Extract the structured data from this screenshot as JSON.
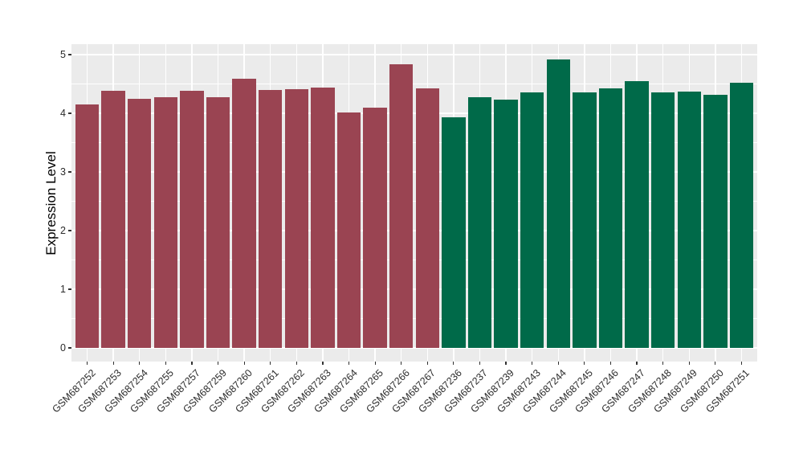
{
  "chart_data": {
    "type": "bar",
    "title": "",
    "xlabel": "",
    "ylabel": "Expression Level",
    "ylim": [
      0,
      5.18
    ],
    "yticks": [
      0,
      1,
      2,
      3,
      4,
      5
    ],
    "y_minor_ticks": [
      0.5,
      1.5,
      2.5,
      3.5,
      4.5
    ],
    "grid": "white major and minor gridlines on gray panel",
    "legend_position": "none",
    "panel_bg": "#EBEBEB",
    "grid_color": "#FFFFFF",
    "tick_color": "#333333",
    "group_colors": {
      "A": "#9A4452",
      "B": "#006A49"
    },
    "categories": [
      "GSM687252",
      "GSM687253",
      "GSM687254",
      "GSM687255",
      "GSM687257",
      "GSM687259",
      "GSM687260",
      "GSM687261",
      "GSM687262",
      "GSM687263",
      "GSM687264",
      "GSM687265",
      "GSM687266",
      "GSM687267",
      "GSM687236",
      "GSM687237",
      "GSM687239",
      "GSM687243",
      "GSM687244",
      "GSM687245",
      "GSM687246",
      "GSM687247",
      "GSM687248",
      "GSM687249",
      "GSM687250",
      "GSM687251"
    ],
    "values": [
      4.15,
      4.39,
      4.25,
      4.27,
      4.39,
      4.28,
      4.59,
      4.4,
      4.41,
      4.44,
      4.01,
      4.1,
      4.84,
      4.42,
      3.93,
      4.27,
      4.23,
      4.36,
      4.92,
      4.36,
      4.42,
      4.55,
      4.36,
      4.37,
      4.31,
      4.52
    ],
    "groups": [
      "A",
      "A",
      "A",
      "A",
      "A",
      "A",
      "A",
      "A",
      "A",
      "A",
      "A",
      "A",
      "A",
      "A",
      "B",
      "B",
      "B",
      "B",
      "B",
      "B",
      "B",
      "B",
      "B",
      "B",
      "B",
      "B"
    ]
  }
}
